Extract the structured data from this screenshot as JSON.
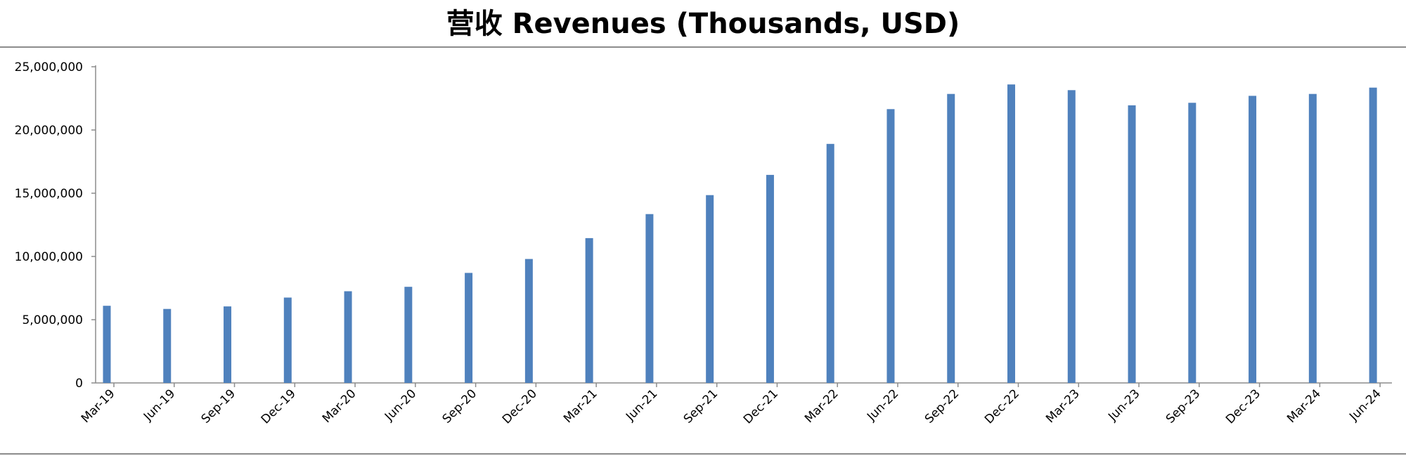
{
  "colors": {
    "bar": "#4f81bd",
    "axis": "#8c8c8c",
    "rule": "#8c8c8c"
  },
  "chart_data": {
    "type": "bar",
    "title": "营收 Revenues (Thousands, USD)",
    "xlabel": "",
    "ylabel": "",
    "ylim": [
      0,
      25000000
    ],
    "yticks": [
      0,
      5000000,
      10000000,
      15000000,
      20000000,
      25000000
    ],
    "ytick_labels": [
      "0",
      "5,000,000",
      "10,000,000",
      "15,000,000",
      "20,000,000",
      "25,000,000"
    ],
    "grid": false,
    "legend": "none",
    "categories": [
      "Mar-19",
      "Jun-19",
      "Sep-19",
      "Dec-19",
      "Mar-20",
      "Jun-20",
      "Sep-20",
      "Dec-20",
      "Mar-21",
      "Jun-21",
      "Sep-21",
      "Dec-21",
      "Mar-22",
      "Jun-22",
      "Sep-22",
      "Dec-22",
      "Mar-23",
      "Jun-23",
      "Sep-23",
      "Dec-23",
      "Mar-24",
      "Jun-24"
    ],
    "values": [
      6100000,
      5850000,
      6050000,
      6750000,
      7250000,
      7600000,
      8700000,
      9800000,
      11450000,
      13350000,
      14850000,
      16450000,
      18900000,
      21650000,
      22850000,
      23600000,
      23150000,
      21950000,
      22150000,
      22700000,
      22850000,
      23350000
    ]
  }
}
